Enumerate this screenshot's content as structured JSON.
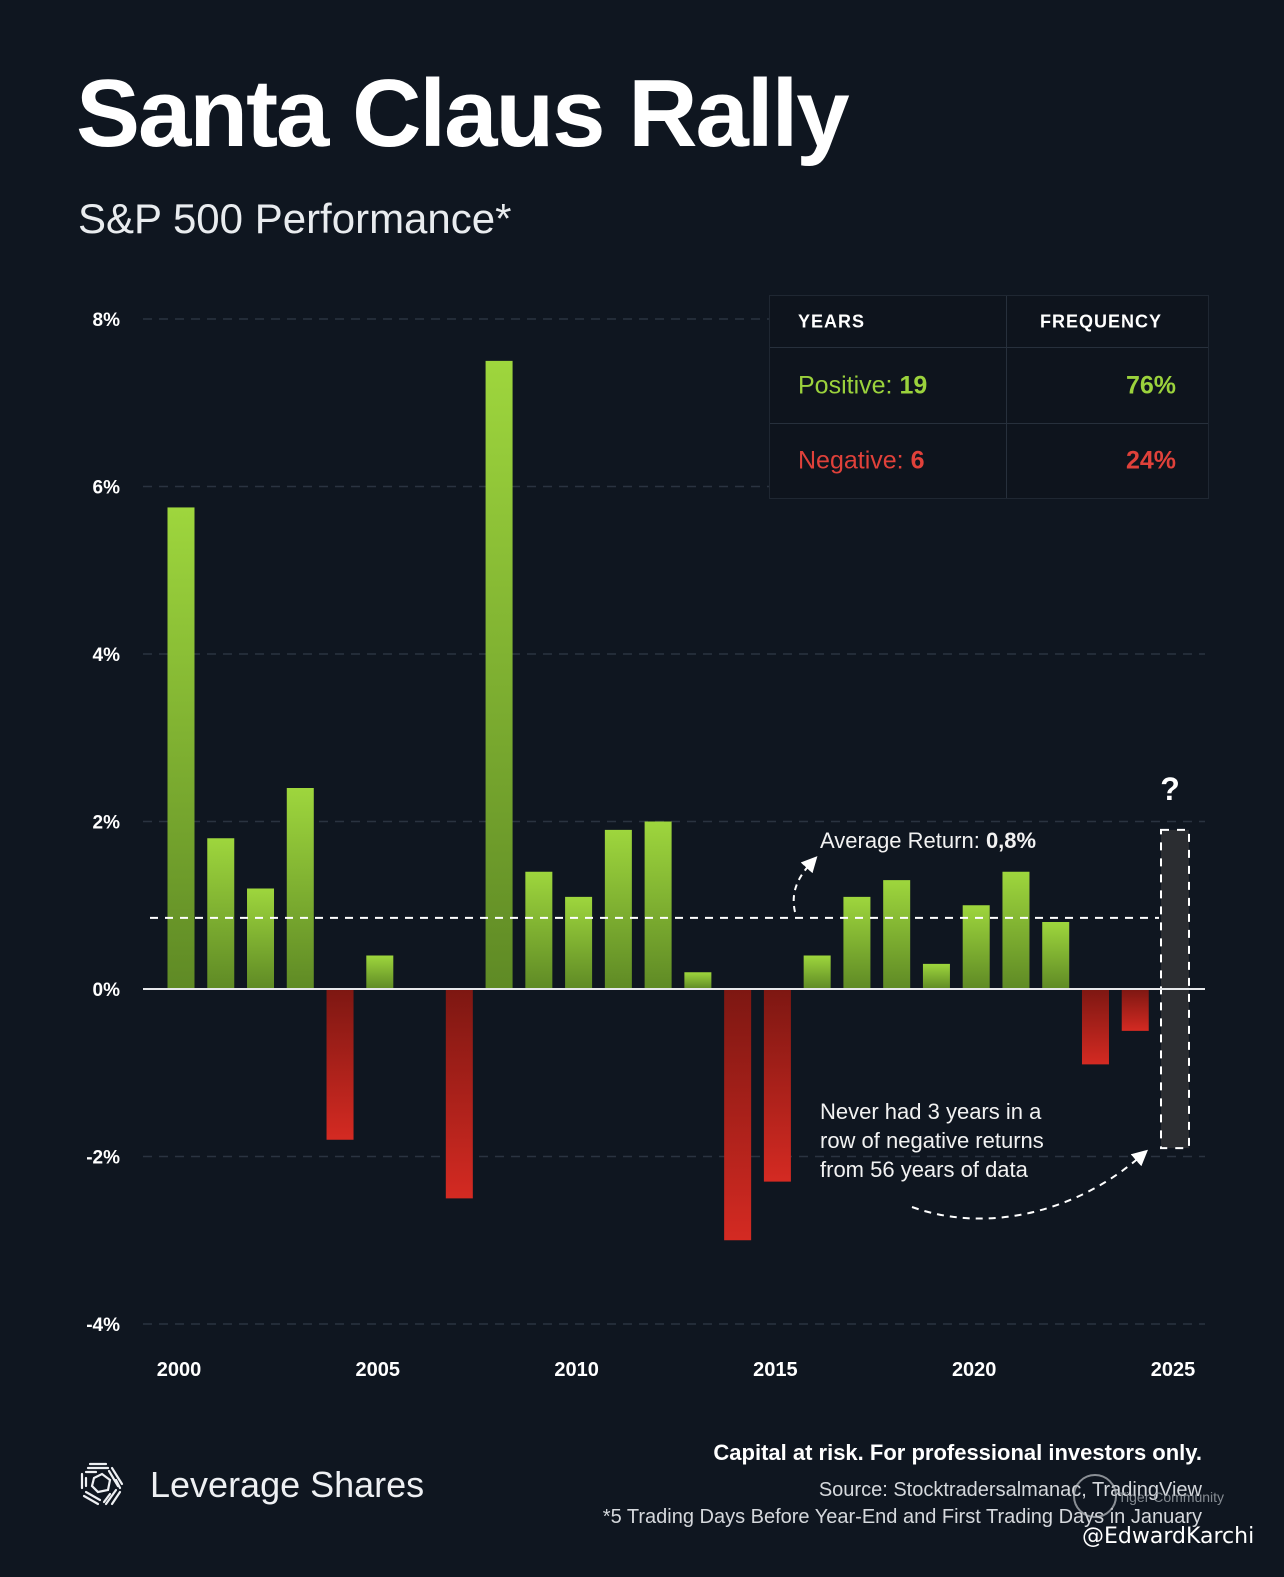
{
  "header": {
    "title": "Santa Claus Rally",
    "subtitle": "S&P 500 Performance*"
  },
  "frequency_table": {
    "headers": [
      "YEARS",
      "FREQUENCY"
    ],
    "rows": [
      {
        "label": "Positive:",
        "count": "19",
        "frequency": "76%",
        "color": "#9bd23c"
      },
      {
        "label": "Negative:",
        "count": "6",
        "frequency": "24%",
        "color": "#e0413a"
      }
    ]
  },
  "annotations": {
    "average_label": "Average Return:",
    "average_value": "0,8%",
    "streak_lines": [
      "Never had 3 years in a",
      "row of negative returns",
      "from 56 years of data"
    ],
    "unknown_marker": "?"
  },
  "footer": {
    "brand": "Leverage Shares",
    "disclaimer": "Capital at risk. For professional investors only.",
    "source": "Source: Stocktradersalmanac, TradingView",
    "footnote": "*5 Trading Days Before Year-End and First Trading Days in January",
    "watermark_community": "Tiger Community",
    "watermark_handle": "@EdwardKarchi"
  },
  "chart_data": {
    "type": "bar",
    "title": "Santa Claus Rally",
    "subtitle": "S&P 500 Performance*",
    "xlabel": "",
    "ylabel": "",
    "ylim": [
      -4,
      8
    ],
    "yticks": [
      8,
      6,
      4,
      2,
      0,
      -2,
      -4
    ],
    "ytick_labels": [
      "8%",
      "6%",
      "4%",
      "2%",
      "0%",
      "-2%",
      "-4%"
    ],
    "xticks": [
      2000,
      2005,
      2010,
      2015,
      2020,
      2025
    ],
    "xtick_labels": [
      "2000",
      "2005",
      "2010",
      "2015",
      "2020",
      "2025"
    ],
    "grid": true,
    "positive_color": "#9bd23c",
    "negative_color": "#d42a22",
    "years": [
      2000,
      2001,
      2002,
      2003,
      2004,
      2005,
      2006,
      2007,
      2008,
      2009,
      2010,
      2011,
      2012,
      2013,
      2014,
      2015,
      2016,
      2017,
      2018,
      2019,
      2020,
      2021,
      2022,
      2023,
      2024
    ],
    "values": [
      5.75,
      1.8,
      1.2,
      2.4,
      -1.8,
      0.4,
      0.0,
      -2.5,
      7.5,
      1.4,
      1.1,
      1.9,
      2.0,
      0.2,
      -3.0,
      -2.3,
      0.4,
      1.1,
      1.3,
      0.3,
      1.0,
      1.4,
      0.8,
      -0.9,
      -0.5
    ],
    "average_return": 0.85,
    "pending": {
      "year": 2025,
      "range": [
        -1.9,
        1.9
      ],
      "label": "?"
    }
  }
}
